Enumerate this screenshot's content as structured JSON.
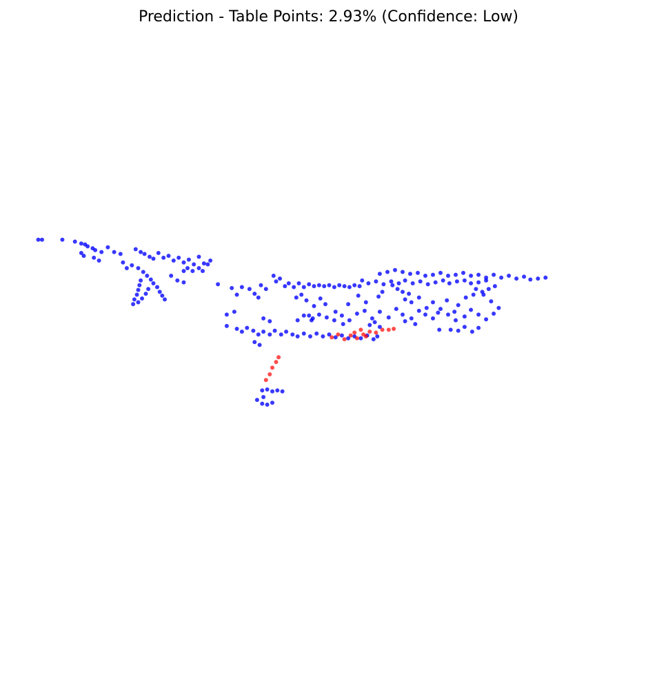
{
  "title": "Prediction - Table Points: 2.93% (Confidence: Low)",
  "colors": {
    "background": "#ffffff",
    "non_table_point": "#0000ff",
    "table_point": "#ff0000",
    "title_text": "#000000"
  },
  "chart_data": {
    "type": "scatter",
    "title": "Prediction - Table Points: 2.93% (Confidence: Low)",
    "axes_visible": false,
    "grid": false,
    "legend": "none",
    "projection": "3d-view",
    "series": [
      {
        "color": "#0000ff",
        "points": [
          [
            -5.3,
            -2.1
          ],
          [
            -5.15,
            -2.1
          ],
          [
            -4.35,
            -2.1
          ],
          [
            -3.85,
            -2.2
          ],
          [
            -3.6,
            -2.3
          ],
          [
            -3.45,
            -2.35
          ],
          [
            -3.35,
            -2.45
          ],
          [
            -3.15,
            -2.55
          ],
          [
            -3.05,
            -2.65
          ],
          [
            -2.8,
            -2.75
          ],
          [
            -2.55,
            -2.5
          ],
          [
            -3.6,
            -2.8
          ],
          [
            -3.5,
            -2.95
          ],
          [
            -3.1,
            -3.05
          ],
          [
            -2.9,
            -3.2
          ],
          [
            -2.3,
            -2.75
          ],
          [
            -2.05,
            -2.85
          ],
          [
            -1.95,
            -3.3
          ],
          [
            -1.8,
            -3.6
          ],
          [
            -1.6,
            -3.45
          ],
          [
            -1.45,
            -2.6
          ],
          [
            -1.25,
            -2.75
          ],
          [
            -1.1,
            -2.85
          ],
          [
            -0.9,
            -3.0
          ],
          [
            -0.75,
            -3.1
          ],
          [
            -0.55,
            -2.8
          ],
          [
            -0.35,
            -3.05
          ],
          [
            -0.15,
            -2.95
          ],
          [
            0.05,
            -3.2
          ],
          [
            0.25,
            -3.05
          ],
          [
            0.45,
            -3.3
          ],
          [
            0.65,
            -3.15
          ],
          [
            0.85,
            -3.4
          ],
          [
            1.05,
            -3.0
          ],
          [
            1.25,
            -3.35
          ],
          [
            -1.35,
            -3.6
          ],
          [
            -1.15,
            -3.8
          ],
          [
            -1.0,
            -4.0
          ],
          [
            -0.85,
            -4.2
          ],
          [
            -0.75,
            -4.4
          ],
          [
            -0.6,
            -4.6
          ],
          [
            -0.5,
            -4.85
          ],
          [
            -0.4,
            -5.05
          ],
          [
            -0.3,
            -5.25
          ],
          [
            -1.25,
            -4.25
          ],
          [
            -1.3,
            -4.5
          ],
          [
            -1.35,
            -4.75
          ],
          [
            -1.4,
            -5.0
          ],
          [
            -1.5,
            -5.25
          ],
          [
            -1.55,
            -5.5
          ],
          [
            -1.35,
            -5.4
          ],
          [
            -1.2,
            -5.2
          ],
          [
            -1.05,
            -4.95
          ],
          [
            -0.95,
            -4.7
          ],
          [
            0.45,
            -3.75
          ],
          [
            0.6,
            -3.6
          ],
          [
            0.2,
            -4.25
          ],
          [
            0.45,
            -4.35
          ],
          [
            -0.05,
            -4.0
          ],
          [
            1.05,
            -3.6
          ],
          [
            0.8,
            -3.75
          ],
          [
            1.5,
            -3.2
          ],
          [
            1.4,
            -3.4
          ],
          [
            1.2,
            -3.75
          ],
          [
            1.8,
            -4.45
          ],
          [
            2.35,
            -4.65
          ],
          [
            2.55,
            -5.0
          ],
          [
            2.75,
            -4.6
          ],
          [
            3.05,
            -4.7
          ],
          [
            3.25,
            -4.95
          ],
          [
            3.4,
            -5.15
          ],
          [
            3.5,
            -4.5
          ],
          [
            3.7,
            -4.7
          ],
          [
            4.0,
            -4.0
          ],
          [
            4.1,
            -4.3
          ],
          [
            4.25,
            -4.15
          ],
          [
            4.45,
            -4.55
          ],
          [
            4.6,
            -4.4
          ],
          [
            4.8,
            -4.6
          ],
          [
            5.0,
            -4.4
          ],
          [
            5.2,
            -4.6
          ],
          [
            5.4,
            -4.45
          ],
          [
            5.6,
            -4.55
          ],
          [
            5.8,
            -4.5
          ],
          [
            6.0,
            -4.55
          ],
          [
            6.2,
            -4.5
          ],
          [
            6.4,
            -4.6
          ],
          [
            6.6,
            -4.5
          ],
          [
            6.8,
            -4.55
          ],
          [
            7.0,
            -4.6
          ],
          [
            7.2,
            -4.5
          ],
          [
            7.4,
            -4.55
          ],
          [
            4.9,
            -5.15
          ],
          [
            5.1,
            -5.0
          ],
          [
            5.3,
            -5.3
          ],
          [
            5.6,
            -5.6
          ],
          [
            5.85,
            -5.2
          ],
          [
            6.05,
            -5.5
          ],
          [
            6.45,
            -5.9
          ],
          [
            6.95,
            -5.5
          ],
          [
            7.35,
            -5.05
          ],
          [
            7.65,
            -5.4
          ],
          [
            8.15,
            -5.1
          ],
          [
            8.3,
            -4.85
          ],
          [
            8.7,
            -4.5
          ],
          [
            8.9,
            -4.7
          ],
          [
            9.1,
            -4.85
          ],
          [
            9.35,
            -4.95
          ],
          [
            9.2,
            -5.25
          ],
          [
            9.45,
            -5.4
          ],
          [
            9.75,
            -5.15
          ],
          [
            10.05,
            -5.7
          ],
          [
            10.3,
            -5.4
          ],
          [
            10.5,
            -5.95
          ],
          [
            10.85,
            -5.3
          ],
          [
            11.15,
            -5.9
          ],
          [
            11.3,
            -5.55
          ],
          [
            11.6,
            -5.15
          ],
          [
            11.9,
            -5.0
          ],
          [
            12.25,
            -4.85
          ],
          [
            12.5,
            -4.7
          ],
          [
            12.75,
            -4.55
          ],
          [
            12.4,
            -4.25
          ],
          [
            12.1,
            -4.35
          ],
          [
            11.8,
            -4.4
          ],
          [
            11.55,
            -4.25
          ],
          [
            11.25,
            -4.3
          ],
          [
            10.95,
            -4.4
          ],
          [
            10.7,
            -4.25
          ],
          [
            10.4,
            -4.35
          ],
          [
            10.1,
            -4.45
          ],
          [
            9.8,
            -4.3
          ],
          [
            9.5,
            -4.4
          ],
          [
            9.2,
            -4.25
          ],
          [
            8.95,
            -4.4
          ],
          [
            8.65,
            -4.3
          ],
          [
            8.35,
            -4.45
          ],
          [
            8.05,
            -4.3
          ],
          [
            7.75,
            -4.4
          ],
          [
            7.5,
            -4.25
          ],
          [
            8.2,
            -3.9
          ],
          [
            8.5,
            -3.8
          ],
          [
            8.8,
            -3.7
          ],
          [
            9.1,
            -3.8
          ],
          [
            9.4,
            -3.9
          ],
          [
            9.7,
            -3.85
          ],
          [
            10.0,
            -4.0
          ],
          [
            10.3,
            -3.95
          ],
          [
            10.6,
            -3.85
          ],
          [
            10.9,
            -4.0
          ],
          [
            11.2,
            -3.95
          ],
          [
            11.5,
            -3.85
          ],
          [
            11.8,
            -4.0
          ],
          [
            12.1,
            -3.95
          ],
          [
            12.4,
            -4.1
          ],
          [
            12.7,
            -3.95
          ],
          [
            13.0,
            -4.1
          ],
          [
            13.3,
            -4.0
          ],
          [
            13.6,
            -4.15
          ],
          [
            13.9,
            -4.05
          ],
          [
            14.15,
            -4.2
          ],
          [
            14.45,
            -4.15
          ],
          [
            14.75,
            -4.1
          ],
          [
            12.0,
            -4.7
          ],
          [
            12.3,
            -5.0
          ],
          [
            12.6,
            -5.35
          ],
          [
            12.9,
            -5.7
          ],
          [
            12.7,
            -6.0
          ],
          [
            12.4,
            -6.3
          ],
          [
            12.1,
            -6.05
          ],
          [
            11.8,
            -5.8
          ],
          [
            11.55,
            -6.15
          ],
          [
            11.2,
            -6.35
          ],
          [
            10.9,
            -6.05
          ],
          [
            10.6,
            -5.75
          ],
          [
            10.3,
            -6.25
          ],
          [
            10.0,
            -6.05
          ],
          [
            9.75,
            -5.85
          ],
          [
            9.45,
            -6.25
          ],
          [
            9.1,
            -6.05
          ],
          [
            8.85,
            -5.75
          ],
          [
            8.55,
            -6.2
          ],
          [
            8.2,
            -5.9
          ],
          [
            7.9,
            -6.25
          ],
          [
            7.6,
            -5.85
          ],
          [
            7.3,
            -6.0
          ],
          [
            7.0,
            -6.35
          ],
          [
            6.7,
            -6.1
          ],
          [
            6.4,
            -6.35
          ],
          [
            6.1,
            -6.2
          ],
          [
            5.8,
            -6.05
          ],
          [
            5.5,
            -6.35
          ],
          [
            5.2,
            -6.1
          ],
          [
            4.95,
            -6.35
          ],
          [
            11.3,
            -6.9
          ],
          [
            11.55,
            -6.7
          ],
          [
            11.85,
            -6.95
          ],
          [
            12.1,
            -6.75
          ],
          [
            11.0,
            -6.85
          ],
          [
            10.55,
            -6.85
          ],
          [
            9.2,
            -6.4
          ],
          [
            9.6,
            -6.55
          ],
          [
            2.15,
            -6.05
          ],
          [
            2.45,
            -5.9
          ],
          [
            2.15,
            -6.65
          ],
          [
            2.55,
            -6.8
          ],
          [
            2.75,
            -6.95
          ],
          [
            2.95,
            -6.75
          ],
          [
            3.2,
            -6.9
          ],
          [
            3.4,
            -7.1
          ],
          [
            3.6,
            -6.95
          ],
          [
            3.85,
            -7.1
          ],
          [
            4.05,
            -6.9
          ],
          [
            4.3,
            -7.1
          ],
          [
            4.5,
            -6.95
          ],
          [
            4.75,
            -7.1
          ],
          [
            4.95,
            -7.2
          ],
          [
            5.2,
            -7.05
          ],
          [
            5.45,
            -7.2
          ],
          [
            5.7,
            -7.05
          ],
          [
            5.95,
            -7.2
          ],
          [
            6.2,
            -7.1
          ],
          [
            6.45,
            -7.25
          ],
          [
            6.7,
            -7.15
          ],
          [
            6.95,
            -7.3
          ],
          [
            7.2,
            -7.2
          ],
          [
            7.45,
            -7.3
          ],
          [
            7.7,
            -7.15
          ],
          [
            7.95,
            -7.35
          ],
          [
            8.1,
            -7.2
          ],
          [
            7.8,
            -6.6
          ],
          [
            8.0,
            -6.45
          ],
          [
            8.2,
            -6.7
          ],
          [
            6.75,
            -6.55
          ],
          [
            5.4,
            -6.1
          ],
          [
            5.55,
            -6.25
          ],
          [
            3.6,
            -6.25
          ],
          [
            3.85,
            -6.4
          ],
          [
            3.25,
            -7.5
          ],
          [
            3.45,
            -7.65
          ],
          [
            3.55,
            -10.05
          ],
          [
            3.75,
            -10.0
          ],
          [
            3.95,
            -10.1
          ],
          [
            4.15,
            -10.05
          ],
          [
            4.35,
            -10.1
          ],
          [
            3.6,
            -10.4
          ],
          [
            3.35,
            -10.55
          ],
          [
            3.55,
            -10.75
          ],
          [
            3.75,
            -10.8
          ],
          [
            3.95,
            -10.7
          ]
        ]
      },
      {
        "color": "#ff0000",
        "points": [
          [
            6.3,
            -7.25
          ],
          [
            6.55,
            -7.1
          ],
          [
            6.8,
            -7.35
          ],
          [
            7.05,
            -7.15
          ],
          [
            7.3,
            -7.3
          ],
          [
            7.55,
            -7.1
          ],
          [
            7.8,
            -6.95
          ],
          [
            8.05,
            -7.0
          ],
          [
            8.3,
            -6.85
          ],
          [
            8.55,
            -6.85
          ],
          [
            8.75,
            -6.8
          ],
          [
            7.2,
            -7.0
          ],
          [
            7.45,
            -6.85
          ],
          [
            7.65,
            -7.2
          ],
          [
            3.7,
            -9.5
          ],
          [
            3.85,
            -9.2
          ],
          [
            3.95,
            -8.85
          ],
          [
            4.1,
            -8.55
          ],
          [
            4.2,
            -8.3
          ]
        ]
      }
    ]
  }
}
